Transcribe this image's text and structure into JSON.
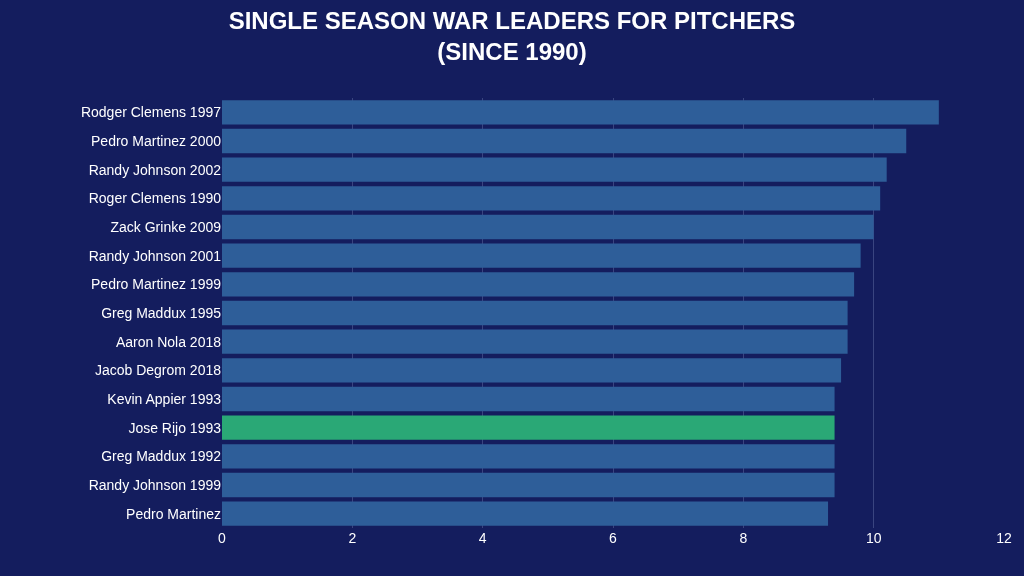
{
  "chart_data": {
    "type": "bar",
    "orientation": "horizontal",
    "title": "SINGLE SEASON WAR LEADERS FOR PITCHERS\n(SINCE 1990)",
    "categories": [
      "Rodger Clemens 1997",
      "Pedro Martinez 2000",
      "Randy Johnson 2002",
      "Roger Clemens 1990",
      "Zack Grinke 2009",
      "Randy Johnson 2001",
      "Pedro Martinez 1999",
      "Greg Maddux 1995",
      "Aaron Nola 2018",
      "Jacob Degrom 2018",
      "Kevin Appier 1993",
      "Jose Rijo 1993",
      "Greg Maddux 1992",
      "Randy Johnson 1999",
      "Pedro Martinez"
    ],
    "values": [
      11.0,
      10.5,
      10.2,
      10.1,
      10.0,
      9.8,
      9.7,
      9.6,
      9.6,
      9.5,
      9.4,
      9.4,
      9.4,
      9.4,
      9.3
    ],
    "colors": [
      "#2e5e99",
      "#2e5e99",
      "#2e5e99",
      "#2e5e99",
      "#2e5e99",
      "#2e5e99",
      "#2e5e99",
      "#2e5e99",
      "#2e5e99",
      "#2e5e99",
      "#2e5e99",
      "#2aa876",
      "#2e5e99",
      "#2e5e99",
      "#2e5e99"
    ],
    "xlim": [
      0,
      12
    ],
    "xticks": [
      0,
      2,
      4,
      6,
      8,
      10,
      12
    ],
    "grid": "x"
  }
}
